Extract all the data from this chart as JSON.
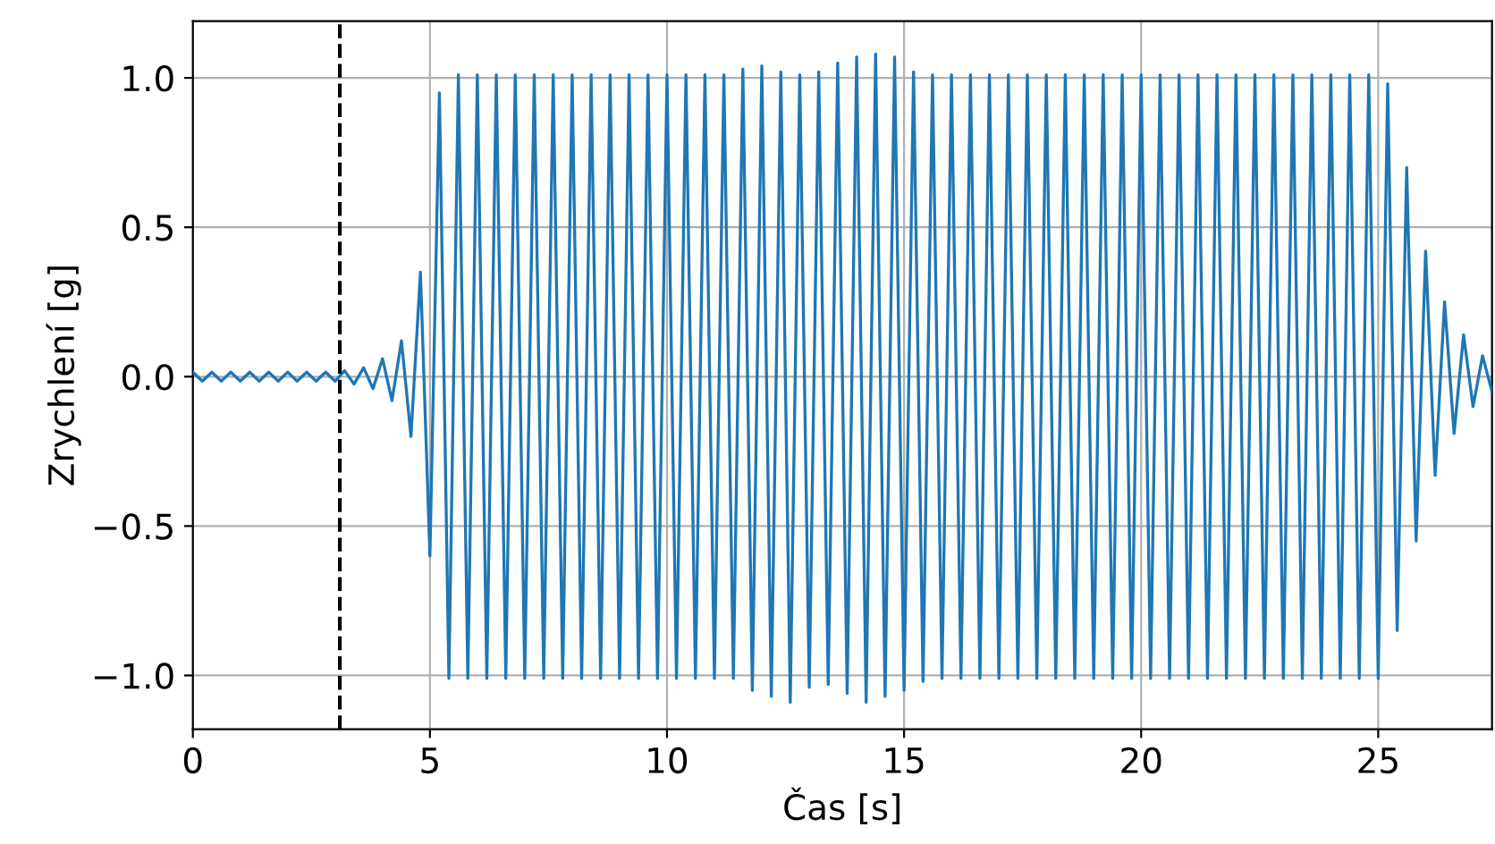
{
  "chart_data": {
    "type": "line",
    "xlabel": "Čas [s]",
    "ylabel": "Zrychlení [g]",
    "x": [
      0,
      0.2,
      0.4,
      0.6,
      0.8,
      1.0,
      1.2,
      1.4,
      1.6,
      1.8,
      2.0,
      2.2,
      2.4,
      2.6,
      2.8,
      3.0,
      3.2,
      3.4,
      3.6,
      3.8,
      4.0,
      4.2,
      4.4,
      4.6,
      4.8,
      5.0,
      5.2,
      5.4,
      5.6,
      5.8,
      6.0,
      6.2,
      6.4,
      6.6,
      6.8,
      7.0,
      7.2,
      7.4,
      7.6,
      7.8,
      8.0,
      8.2,
      8.4,
      8.6,
      8.8,
      9.0,
      9.2,
      9.4,
      9.6,
      9.8,
      10.0,
      10.2,
      10.4,
      10.6,
      10.8,
      11.0,
      11.2,
      11.4,
      11.6,
      11.8,
      12.0,
      12.2,
      12.4,
      12.6,
      12.8,
      13.0,
      13.2,
      13.4,
      13.6,
      13.8,
      14.0,
      14.2,
      14.4,
      14.6,
      14.8,
      15.0,
      15.2,
      15.4,
      15.6,
      15.8,
      16.0,
      16.2,
      16.4,
      16.6,
      16.8,
      17.0,
      17.2,
      17.4,
      17.6,
      17.8,
      18.0,
      18.2,
      18.4,
      18.6,
      18.8,
      19.0,
      19.2,
      19.4,
      19.6,
      19.8,
      20.0,
      20.2,
      20.4,
      20.6,
      20.8,
      21.0,
      21.2,
      21.4,
      21.6,
      21.8,
      22.0,
      22.2,
      22.4,
      22.6,
      22.8,
      23.0,
      23.2,
      23.4,
      23.6,
      23.8,
      24.0,
      24.2,
      24.4,
      24.6,
      24.8,
      25.0,
      25.2,
      25.4,
      25.6,
      25.8,
      26.0,
      26.2,
      26.4,
      26.6,
      26.8,
      27.0,
      27.2,
      27.4
    ],
    "series": [
      {
        "color": "#1f77b4",
        "values": [
          0.015,
          -0.015,
          0.015,
          -0.015,
          0.015,
          -0.015,
          0.015,
          -0.015,
          0.015,
          -0.015,
          0.015,
          -0.015,
          0.015,
          -0.015,
          0.015,
          -0.015,
          0.02,
          -0.025,
          0.03,
          -0.04,
          0.06,
          -0.08,
          0.12,
          -0.2,
          0.35,
          -0.6,
          0.95,
          -1.01,
          1.01,
          -1.01,
          1.01,
          -1.01,
          1.01,
          -1.01,
          1.01,
          -1.01,
          1.01,
          -1.01,
          1.01,
          -1.01,
          1.01,
          -1.01,
          1.01,
          -1.01,
          1.01,
          -1.01,
          1.01,
          -1.01,
          1.01,
          -1.01,
          1.01,
          -1.01,
          1.01,
          -1.01,
          1.01,
          -1.01,
          1.01,
          -1.01,
          1.03,
          -1.05,
          1.04,
          -1.07,
          1.02,
          -1.09,
          1.01,
          -1.04,
          1.02,
          -1.03,
          1.05,
          -1.06,
          1.07,
          -1.09,
          1.08,
          -1.07,
          1.07,
          -1.05,
          1.02,
          -1.02,
          1.01,
          -1.01,
          1.01,
          -1.01,
          1.01,
          -1.01,
          1.01,
          -1.01,
          1.01,
          -1.01,
          1.01,
          -1.01,
          1.01,
          -1.01,
          1.01,
          -1.01,
          1.01,
          -1.01,
          1.01,
          -1.01,
          1.01,
          -1.01,
          1.01,
          -1.01,
          1.01,
          -1.01,
          1.01,
          -1.01,
          1.01,
          -1.01,
          1.01,
          -1.01,
          1.01,
          -1.01,
          1.01,
          -1.01,
          1.01,
          -1.01,
          1.01,
          -1.01,
          1.01,
          -1.01,
          1.01,
          -1.01,
          1.01,
          -1.01,
          1.01,
          -1.01,
          0.98,
          -0.85,
          0.7,
          -0.55,
          0.42,
          -0.33,
          0.25,
          -0.19,
          0.14,
          -0.1,
          0.07,
          -0.05
        ]
      }
    ],
    "xlim": [
      0,
      27.4
    ],
    "xticks": [
      0,
      5,
      10,
      15,
      20,
      25
    ],
    "ylim": [
      -1.18,
      1.19
    ],
    "yticks": [
      {
        "value": -1.0,
        "label": "−1.0"
      },
      {
        "value": -0.5,
        "label": "−0.5"
      },
      {
        "value": 0.0,
        "label": "0.0"
      },
      {
        "value": 0.5,
        "label": "0.5"
      },
      {
        "value": 1.0,
        "label": "1.0"
      }
    ],
    "ref_lines": [
      {
        "axis": "x",
        "value": 3.1,
        "color": "#000000",
        "line_style": "dashed"
      }
    ],
    "grid": true,
    "line_style": "solid"
  }
}
